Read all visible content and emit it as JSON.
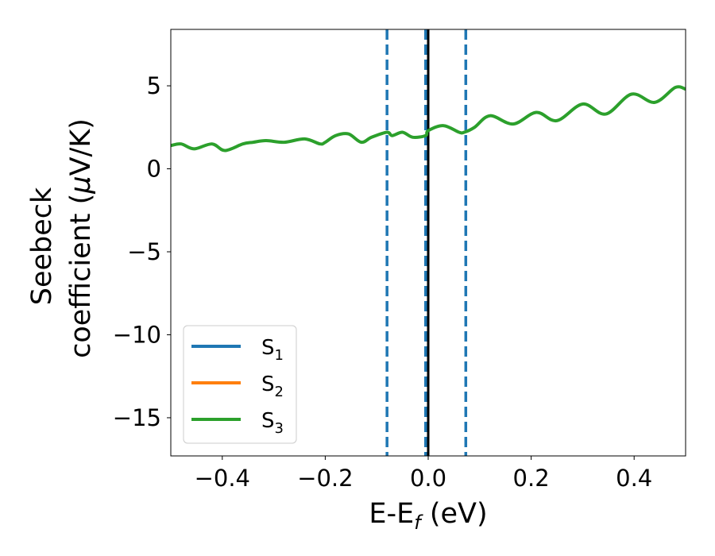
{
  "chart_data": {
    "type": "line",
    "title": "",
    "xlabel": "E-E_f (eV)",
    "ylabel_line1": "Seebeck",
    "ylabel_line2": "coefficient  (μV/K)",
    "xlim": [
      -0.5,
      0.5
    ],
    "ylim": [
      -17.3,
      8.4
    ],
    "xticks": [
      -0.4,
      -0.2,
      0.0,
      0.2,
      0.4
    ],
    "xtick_labels": [
      "−0.4",
      "−0.2",
      "0.0",
      "0.2",
      "0.4"
    ],
    "yticks": [
      5,
      0,
      -5,
      -10,
      -15
    ],
    "ytick_labels": [
      "5",
      "0",
      "−5",
      "−10",
      "−15"
    ],
    "grid": false,
    "legend_position": "lower-left",
    "vertical_lines": [
      {
        "x": -0.08,
        "style": "dashed",
        "color": "#1f77b4"
      },
      {
        "x": -0.005,
        "style": "dashed",
        "color": "#1f77b4"
      },
      {
        "x": 0.0,
        "style": "solid",
        "color": "#000000"
      },
      {
        "x": 0.073,
        "style": "dashed",
        "color": "#1f77b4"
      }
    ],
    "series": [
      {
        "name": "S1",
        "name_base": "S",
        "name_sub": "1",
        "color": "#1f77b4",
        "visible_in_plot": false,
        "x": [],
        "y": []
      },
      {
        "name": "S2",
        "name_base": "S",
        "name_sub": "2",
        "color": "#ff7f0e",
        "visible_in_plot": false,
        "x": [],
        "y": []
      },
      {
        "name": "S3",
        "name_base": "S",
        "name_sub": "3",
        "color": "#2ca02c",
        "visible_in_plot": true,
        "x": [
          -0.5,
          -0.48,
          -0.455,
          -0.42,
          -0.395,
          -0.36,
          -0.34,
          -0.315,
          -0.28,
          -0.24,
          -0.21,
          -0.2,
          -0.18,
          -0.155,
          -0.13,
          -0.11,
          -0.08,
          -0.07,
          -0.05,
          -0.03,
          -0.005,
          0.0,
          0.03,
          0.06,
          0.07,
          0.09,
          0.12,
          0.165,
          0.21,
          0.25,
          0.3,
          0.345,
          0.395,
          0.44,
          0.48,
          0.5
        ],
        "y": [
          1.4,
          1.5,
          1.2,
          1.5,
          1.1,
          1.5,
          1.6,
          1.7,
          1.6,
          1.8,
          1.5,
          1.6,
          2.0,
          2.1,
          1.6,
          1.9,
          2.2,
          2.0,
          2.2,
          1.9,
          2.0,
          2.3,
          2.6,
          2.2,
          2.2,
          2.5,
          3.2,
          2.7,
          3.4,
          2.9,
          3.9,
          3.3,
          4.5,
          4.0,
          4.9,
          4.8
        ]
      }
    ]
  }
}
